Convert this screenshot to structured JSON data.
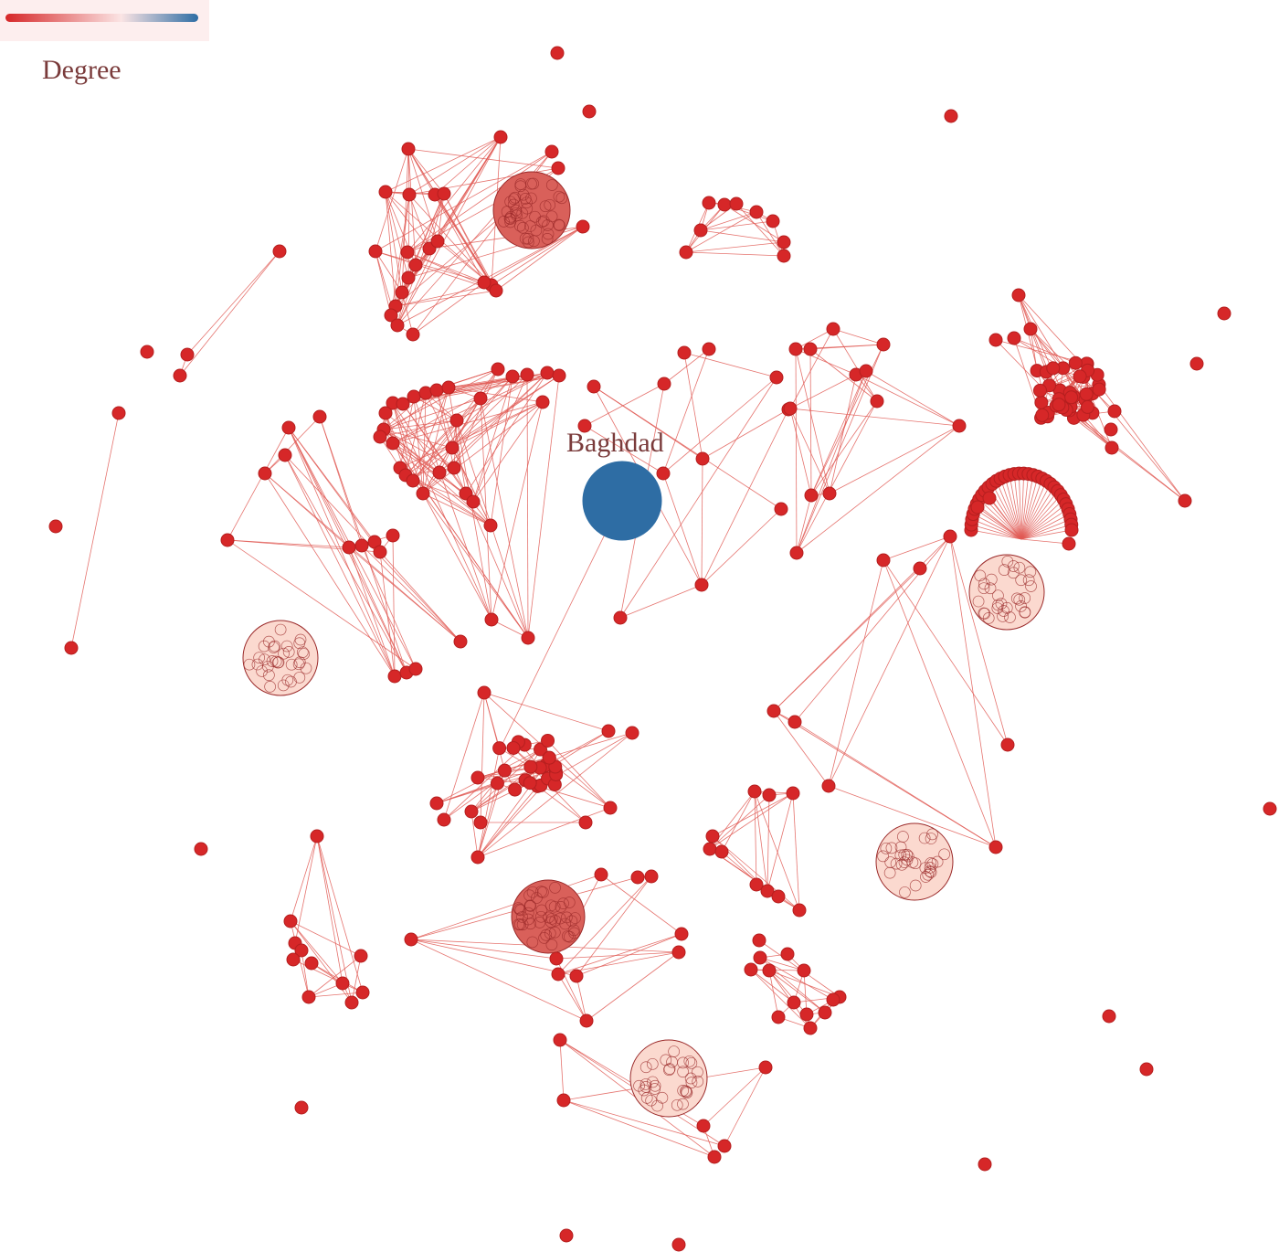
{
  "legend": {
    "title": "Degree",
    "gradient": [
      "#d62728",
      "#fbe4e4",
      "#2e6da4"
    ]
  },
  "colors": {
    "node": "#d62728",
    "node_stroke": "#b51f1f",
    "edge": "#e05a55",
    "hub": "#2e6da4",
    "cluster_dense": "#d9605a",
    "cluster_light": "#fbd9cf",
    "cluster_stroke": "#9b2a2a"
  },
  "hub": {
    "label": "Baghdad"
  }
}
